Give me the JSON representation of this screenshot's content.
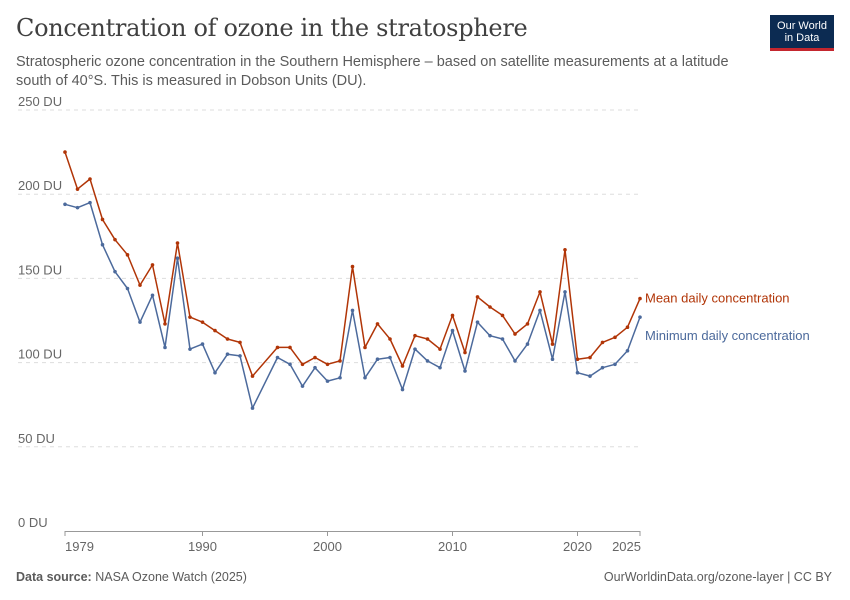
{
  "header": {
    "title": "Concentration of ozone in the stratosphere",
    "subtitle": "Stratospheric ozone concentration in the Southern Hemisphere – based on satellite measurements at a latitude south of 40°S. This is measured in Dobson Units (DU).",
    "logo_line1": "Our World",
    "logo_line2": "in Data"
  },
  "footer": {
    "source_label": "Data source:",
    "source_text": "NASA Ozone Watch (2025)",
    "url": "OurWorldinData.org/ozone-layer | CC BY"
  },
  "chart_data": {
    "type": "line",
    "x": [
      1979,
      1980,
      1981,
      1982,
      1983,
      1984,
      1985,
      1986,
      1987,
      1988,
      1989,
      1990,
      1991,
      1992,
      1993,
      1994,
      1996,
      1997,
      1998,
      1999,
      2000,
      2001,
      2002,
      2003,
      2004,
      2005,
      2006,
      2007,
      2008,
      2009,
      2010,
      2011,
      2012,
      2013,
      2014,
      2015,
      2016,
      2017,
      2018,
      2019,
      2020,
      2021,
      2022,
      2023,
      2024,
      2025
    ],
    "series": [
      {
        "name": "Mean daily concentration",
        "color": "#b13507",
        "values": [
          225,
          203,
          209,
          185,
          173,
          164,
          146,
          158,
          123,
          171,
          127,
          124,
          119,
          114,
          112,
          92,
          109,
          109,
          99,
          103,
          99,
          101,
          157,
          109,
          123,
          114,
          98,
          116,
          114,
          108,
          128,
          106,
          139,
          133,
          128,
          117,
          123,
          142,
          111,
          167,
          102,
          103,
          112,
          115,
          121,
          138
        ]
      },
      {
        "name": "Minimum daily concentration",
        "color": "#4c6a9c",
        "values": [
          194,
          192,
          195,
          170,
          154,
          144,
          124,
          140,
          109,
          162,
          108,
          111,
          94,
          105,
          104,
          73,
          103,
          99,
          86,
          97,
          89,
          91,
          131,
          91,
          102,
          103,
          84,
          108,
          101,
          97,
          119,
          95,
          124,
          116,
          114,
          101,
          111,
          131,
          102,
          142,
          94,
          92,
          97,
          99,
          107,
          127
        ]
      }
    ],
    "ylabel": "",
    "xlabel": "",
    "y_ticks": [
      "0 DU",
      "50 DU",
      "100 DU",
      "150 DU",
      "200 DU",
      "250 DU"
    ],
    "y_tick_values": [
      0,
      50,
      100,
      150,
      200,
      250
    ],
    "x_ticks": [
      "1979",
      "1990",
      "2000",
      "2010",
      "2020",
      "2025"
    ],
    "x_tick_values": [
      1979,
      1990,
      2000,
      2010,
      2020,
      2025
    ],
    "ylim": [
      0,
      250
    ],
    "xlim": [
      1979,
      2025
    ],
    "grid": "horizontal dashed",
    "legend": "right-side line labels"
  }
}
